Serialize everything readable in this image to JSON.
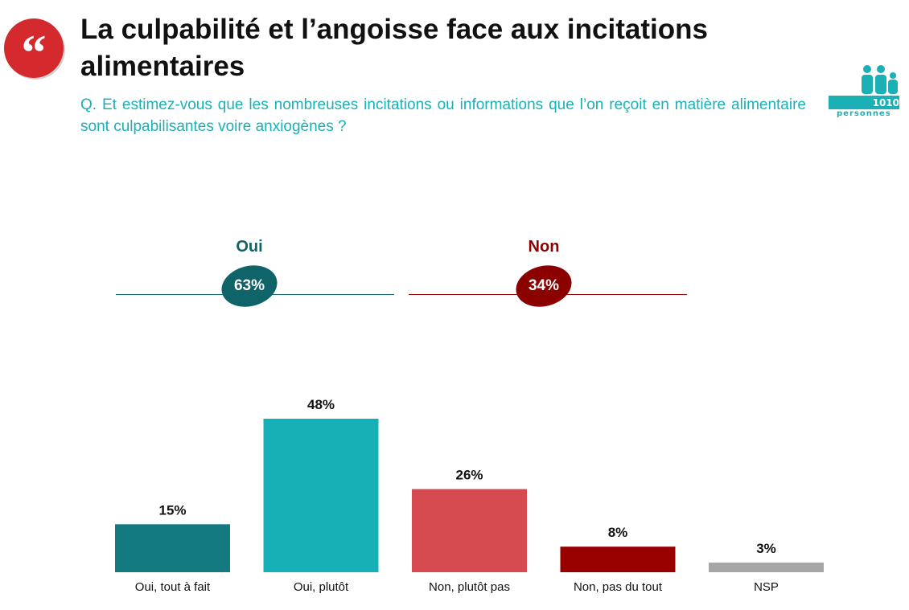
{
  "title": "La culpabilité et l’angoisse face aux incitations alimentaires",
  "question": "Q. Et estimez-vous que les nombreuses incitations ou informations que l’on reçoit en matière alimentaire sont culpabilisantes voire anxiogènes ?",
  "sample": {
    "count": "1010",
    "label": "personnes"
  },
  "summary": {
    "oui": {
      "label": "Oui",
      "value": "63%",
      "color": "#0f6469"
    },
    "non": {
      "label": "Non",
      "value": "34%",
      "color": "#8b0000"
    }
  },
  "colors": {
    "title": "#111111",
    "question": "#1ab0b6",
    "badge": "#d42a2e"
  },
  "chart_data": {
    "type": "bar",
    "categories": [
      "Oui, tout à fait",
      "Oui, plutôt",
      "Non, plutôt pas",
      "Non, pas du tout",
      "NSP"
    ],
    "values": [
      15,
      48,
      26,
      8,
      3
    ],
    "value_labels": [
      "15%",
      "48%",
      "26%",
      "8%",
      "3%"
    ],
    "colors": [
      "#127a80",
      "#14b0b6",
      "#d54b4f",
      "#980000",
      "#a6a6a6"
    ],
    "title": "",
    "xlabel": "",
    "ylabel": "",
    "ylim": [
      0,
      48
    ],
    "grid": false,
    "legend": "none"
  }
}
